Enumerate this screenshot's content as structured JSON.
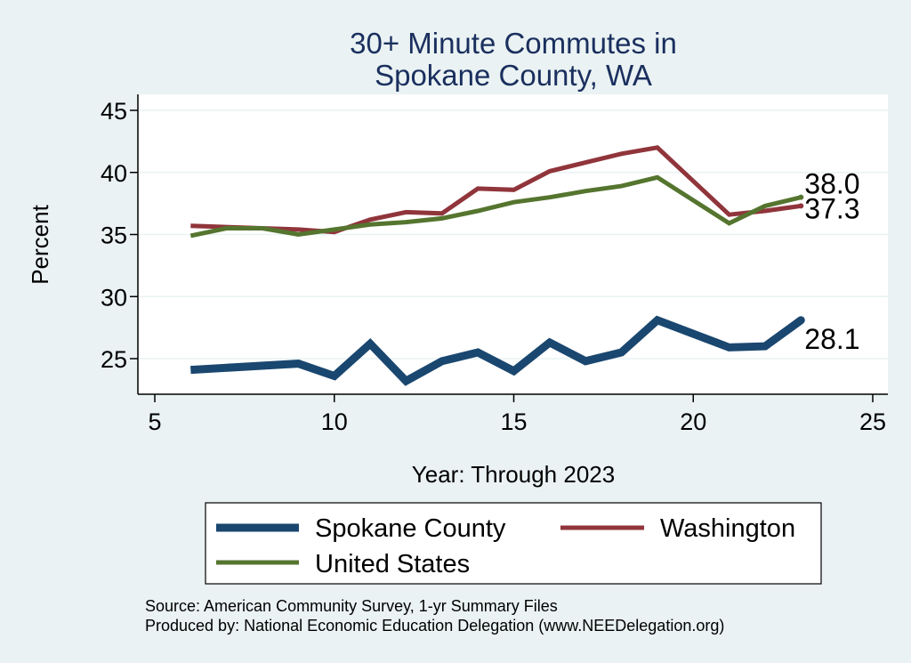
{
  "chart_data": {
    "type": "line",
    "title": [
      "30+ Minute Commutes in",
      "Spokane County, WA"
    ],
    "xlabel": "Year: Through 2023",
    "ylabel": "Percent",
    "xlim": [
      5,
      25
    ],
    "ylim": [
      22,
      46
    ],
    "xticks": [
      5,
      10,
      15,
      20,
      25
    ],
    "yticks": [
      25,
      30,
      35,
      40,
      45
    ],
    "grid": "horizontal",
    "series": [
      {
        "name": "Spokane County",
        "color": "#1a476f",
        "style": "thick",
        "x": [
          6,
          9,
          10,
          11,
          12,
          13,
          14,
          15,
          16,
          17,
          18,
          19,
          21,
          22,
          23
        ],
        "values": [
          24.1,
          24.6,
          23.6,
          26.2,
          23.2,
          24.8,
          25.5,
          24.0,
          26.3,
          24.8,
          25.5,
          28.1,
          25.9,
          26.0,
          28.1
        ],
        "end_label": "28.1"
      },
      {
        "name": "Washington",
        "color": "#90353b",
        "style": "medium",
        "x": [
          6,
          9,
          10,
          11,
          12,
          13,
          14,
          15,
          16,
          17,
          18,
          19,
          21,
          22,
          23
        ],
        "values": [
          35.7,
          35.4,
          35.2,
          36.2,
          36.8,
          36.7,
          38.7,
          38.6,
          40.1,
          40.8,
          41.5,
          42.0,
          36.6,
          36.9,
          37.3
        ],
        "end_label": "37.3"
      },
      {
        "name": "United States",
        "color": "#55752f",
        "style": "medium",
        "x": [
          6,
          7,
          8,
          9,
          10,
          11,
          12,
          13,
          14,
          15,
          16,
          17,
          18,
          19,
          21,
          22,
          23
        ],
        "values": [
          34.9,
          35.5,
          35.5,
          35.0,
          35.4,
          35.8,
          36.0,
          36.3,
          36.9,
          37.6,
          38.0,
          38.5,
          38.9,
          39.6,
          35.9,
          37.3,
          38.0
        ],
        "end_label": "38.0"
      }
    ],
    "legend": {
      "placement": "bottom",
      "entries": [
        "Spokane County",
        "Washington",
        "United States"
      ]
    },
    "notes": [
      "Source: American Community Survey, 1-yr Summary Files",
      "Produced by: National Economic Education Delegation (www.NEEDelegation.org)"
    ]
  }
}
